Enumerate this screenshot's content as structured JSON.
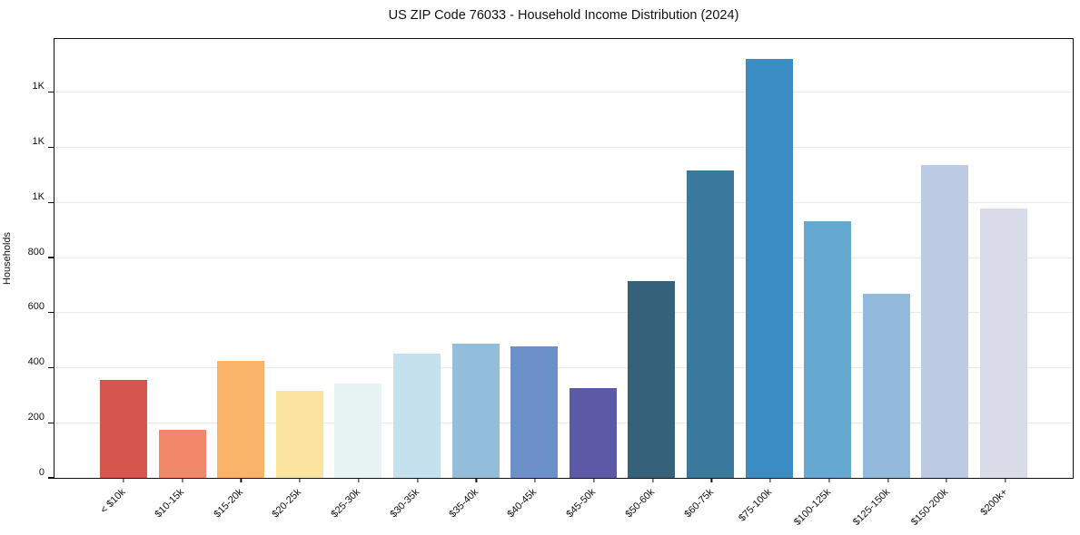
{
  "title": "US ZIP Code 76033 - Household Income Distribution (2024)",
  "chart_data": {
    "type": "bar",
    "title": "US ZIP Code 76033 - Household Income Distribution (2024)",
    "xlabel": "",
    "ylabel": "Households",
    "categories": [
      "< $10k",
      "$10-15k",
      "$15-20k",
      "$20-25k",
      "$25-30k",
      "$30-35k",
      "$35-40k",
      "$40-45k",
      "$45-50k",
      "$50-60k",
      "$60-75k",
      "$75-100k",
      "$100-125k",
      "$125-150k",
      "$150-200k",
      "$200k+"
    ],
    "values": [
      355,
      175,
      425,
      315,
      343,
      451,
      486,
      476,
      325,
      716,
      1115,
      1522,
      933,
      670,
      1136,
      979
    ],
    "bar_colors": [
      "#d6564e",
      "#f1886a",
      "#f9b469",
      "#fce3a0",
      "#e8f4f3",
      "#c4e1ed",
      "#92bedc",
      "#6c90c8",
      "#5c59a7",
      "#36617a",
      "#38799d",
      "#3a8cc3",
      "#65a8d0",
      "#92badc",
      "#bccae3",
      "#d9dbe8"
    ],
    "ylim": [
      0,
      1600
    ],
    "yticks": {
      "values": [
        0,
        200,
        400,
        600,
        800,
        1000,
        1200,
        1400
      ],
      "labels": [
        "0",
        "200",
        "400",
        "600",
        "800",
        "1K",
        "1K",
        "1K"
      ]
    },
    "grid": "horizontal gridlines on",
    "legend": "none",
    "background_color": "#ffffff",
    "gridline_color": "#eaeaec",
    "x_tick_rotation_deg": 45
  }
}
